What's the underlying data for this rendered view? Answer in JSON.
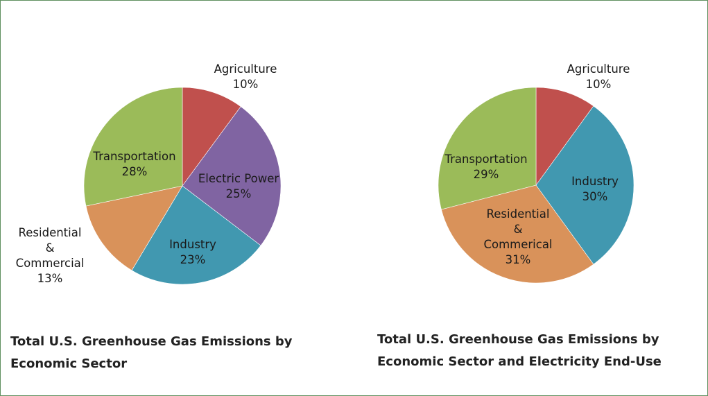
{
  "chart_data": [
    {
      "type": "pie",
      "title": "Total U.S. Greenhouse Gas Emissions by Economic Sector",
      "slices": [
        {
          "label": "Agriculture",
          "value": 10,
          "value_label": "10%",
          "color": "#c0504d"
        },
        {
          "label": "Electric Power",
          "value": 25,
          "value_label": "25%",
          "color": "#8064a2"
        },
        {
          "label": "Industry",
          "value": 23,
          "value_label": "23%",
          "color": "#4198b0"
        },
        {
          "label": "Residential & Commercial",
          "value": 13,
          "value_label": "13%",
          "color": "#d9925a"
        },
        {
          "label": "Transportation",
          "value": 28,
          "value_label": "28%",
          "color": "#9bbb59"
        }
      ]
    },
    {
      "type": "pie",
      "title": "Total U.S. Greenhouse Gas Emissions by Economic Sector and Electricity End-Use",
      "slices": [
        {
          "label": "Agriculture",
          "value": 10,
          "value_label": "10%",
          "color": "#c0504d"
        },
        {
          "label": "Industry",
          "value": 30,
          "value_label": "30%",
          "color": "#4198b0"
        },
        {
          "label": "Residential & Commerical",
          "value": 31,
          "value_label": "31%",
          "color": "#d9925a"
        },
        {
          "label": "Transportation",
          "value": 29,
          "value_label": "29%",
          "color": "#9bbb59"
        }
      ]
    }
  ]
}
